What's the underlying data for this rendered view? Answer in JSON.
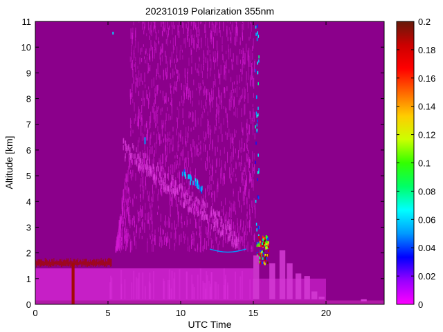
{
  "chart_data": {
    "type": "heatmap",
    "title": "20231019 Polarization 355nm",
    "xlabel": "UTC Time",
    "ylabel": "Altitude [km]",
    "xlim": [
      0,
      24
    ],
    "ylim": [
      0,
      11
    ],
    "x_ticks": [
      0,
      5,
      10,
      15,
      20
    ],
    "y_ticks": [
      0,
      1,
      2,
      3,
      4,
      5,
      6,
      7,
      8,
      9,
      10,
      11
    ],
    "colorbar": {
      "range": [
        0,
        0.2
      ],
      "ticks": [
        "0",
        "0.02",
        "0.04",
        "0.06",
        "0.08",
        "0.1",
        "0.12",
        "0.14",
        "0.16",
        "0.18",
        "0.2"
      ],
      "colormap": [
        "#ff00ff",
        "#9900ff",
        "#0000ff",
        "#0099ff",
        "#00ffff",
        "#00ff66",
        "#33ff00",
        "#ccff00",
        "#ffcc00",
        "#ff6600",
        "#ff0000",
        "#cc0000",
        "#661a0a"
      ]
    },
    "background_value": 0.005,
    "regions": [
      {
        "name": "boundary layer",
        "x": [
          0,
          20
        ],
        "y": [
          0,
          1.5
        ],
        "value": 0.015
      },
      {
        "name": "aerosol top layer",
        "x": [
          0,
          5
        ],
        "y": [
          1.5,
          1.9
        ],
        "value": 0.19
      },
      {
        "name": "upper aerosol plume",
        "x": [
          5.5,
          15
        ],
        "y": [
          2,
          11
        ],
        "value": 0.012
      },
      {
        "name": "cloud layer",
        "x": [
          15.2,
          16.2
        ],
        "y": [
          1.5,
          2.6
        ],
        "value": 0.14
      },
      {
        "name": "vertical column",
        "x": [
          2.5,
          2.7
        ],
        "y": [
          0,
          1.6
        ],
        "value": 0.19
      },
      {
        "name": "elevated filament",
        "x": [
          10,
          11.5
        ],
        "y": [
          4.2,
          5.2
        ],
        "value": 0.05
      },
      {
        "name": "arc near 2 km",
        "x": [
          12,
          14.5
        ],
        "y": [
          2,
          2.3
        ],
        "value": 0.05
      }
    ],
    "colors": {
      "background": "#8b008b",
      "plume": "#d21ad2",
      "boundary_layer": "#cc22cc",
      "aerosol": "#7a1a10"
    }
  }
}
